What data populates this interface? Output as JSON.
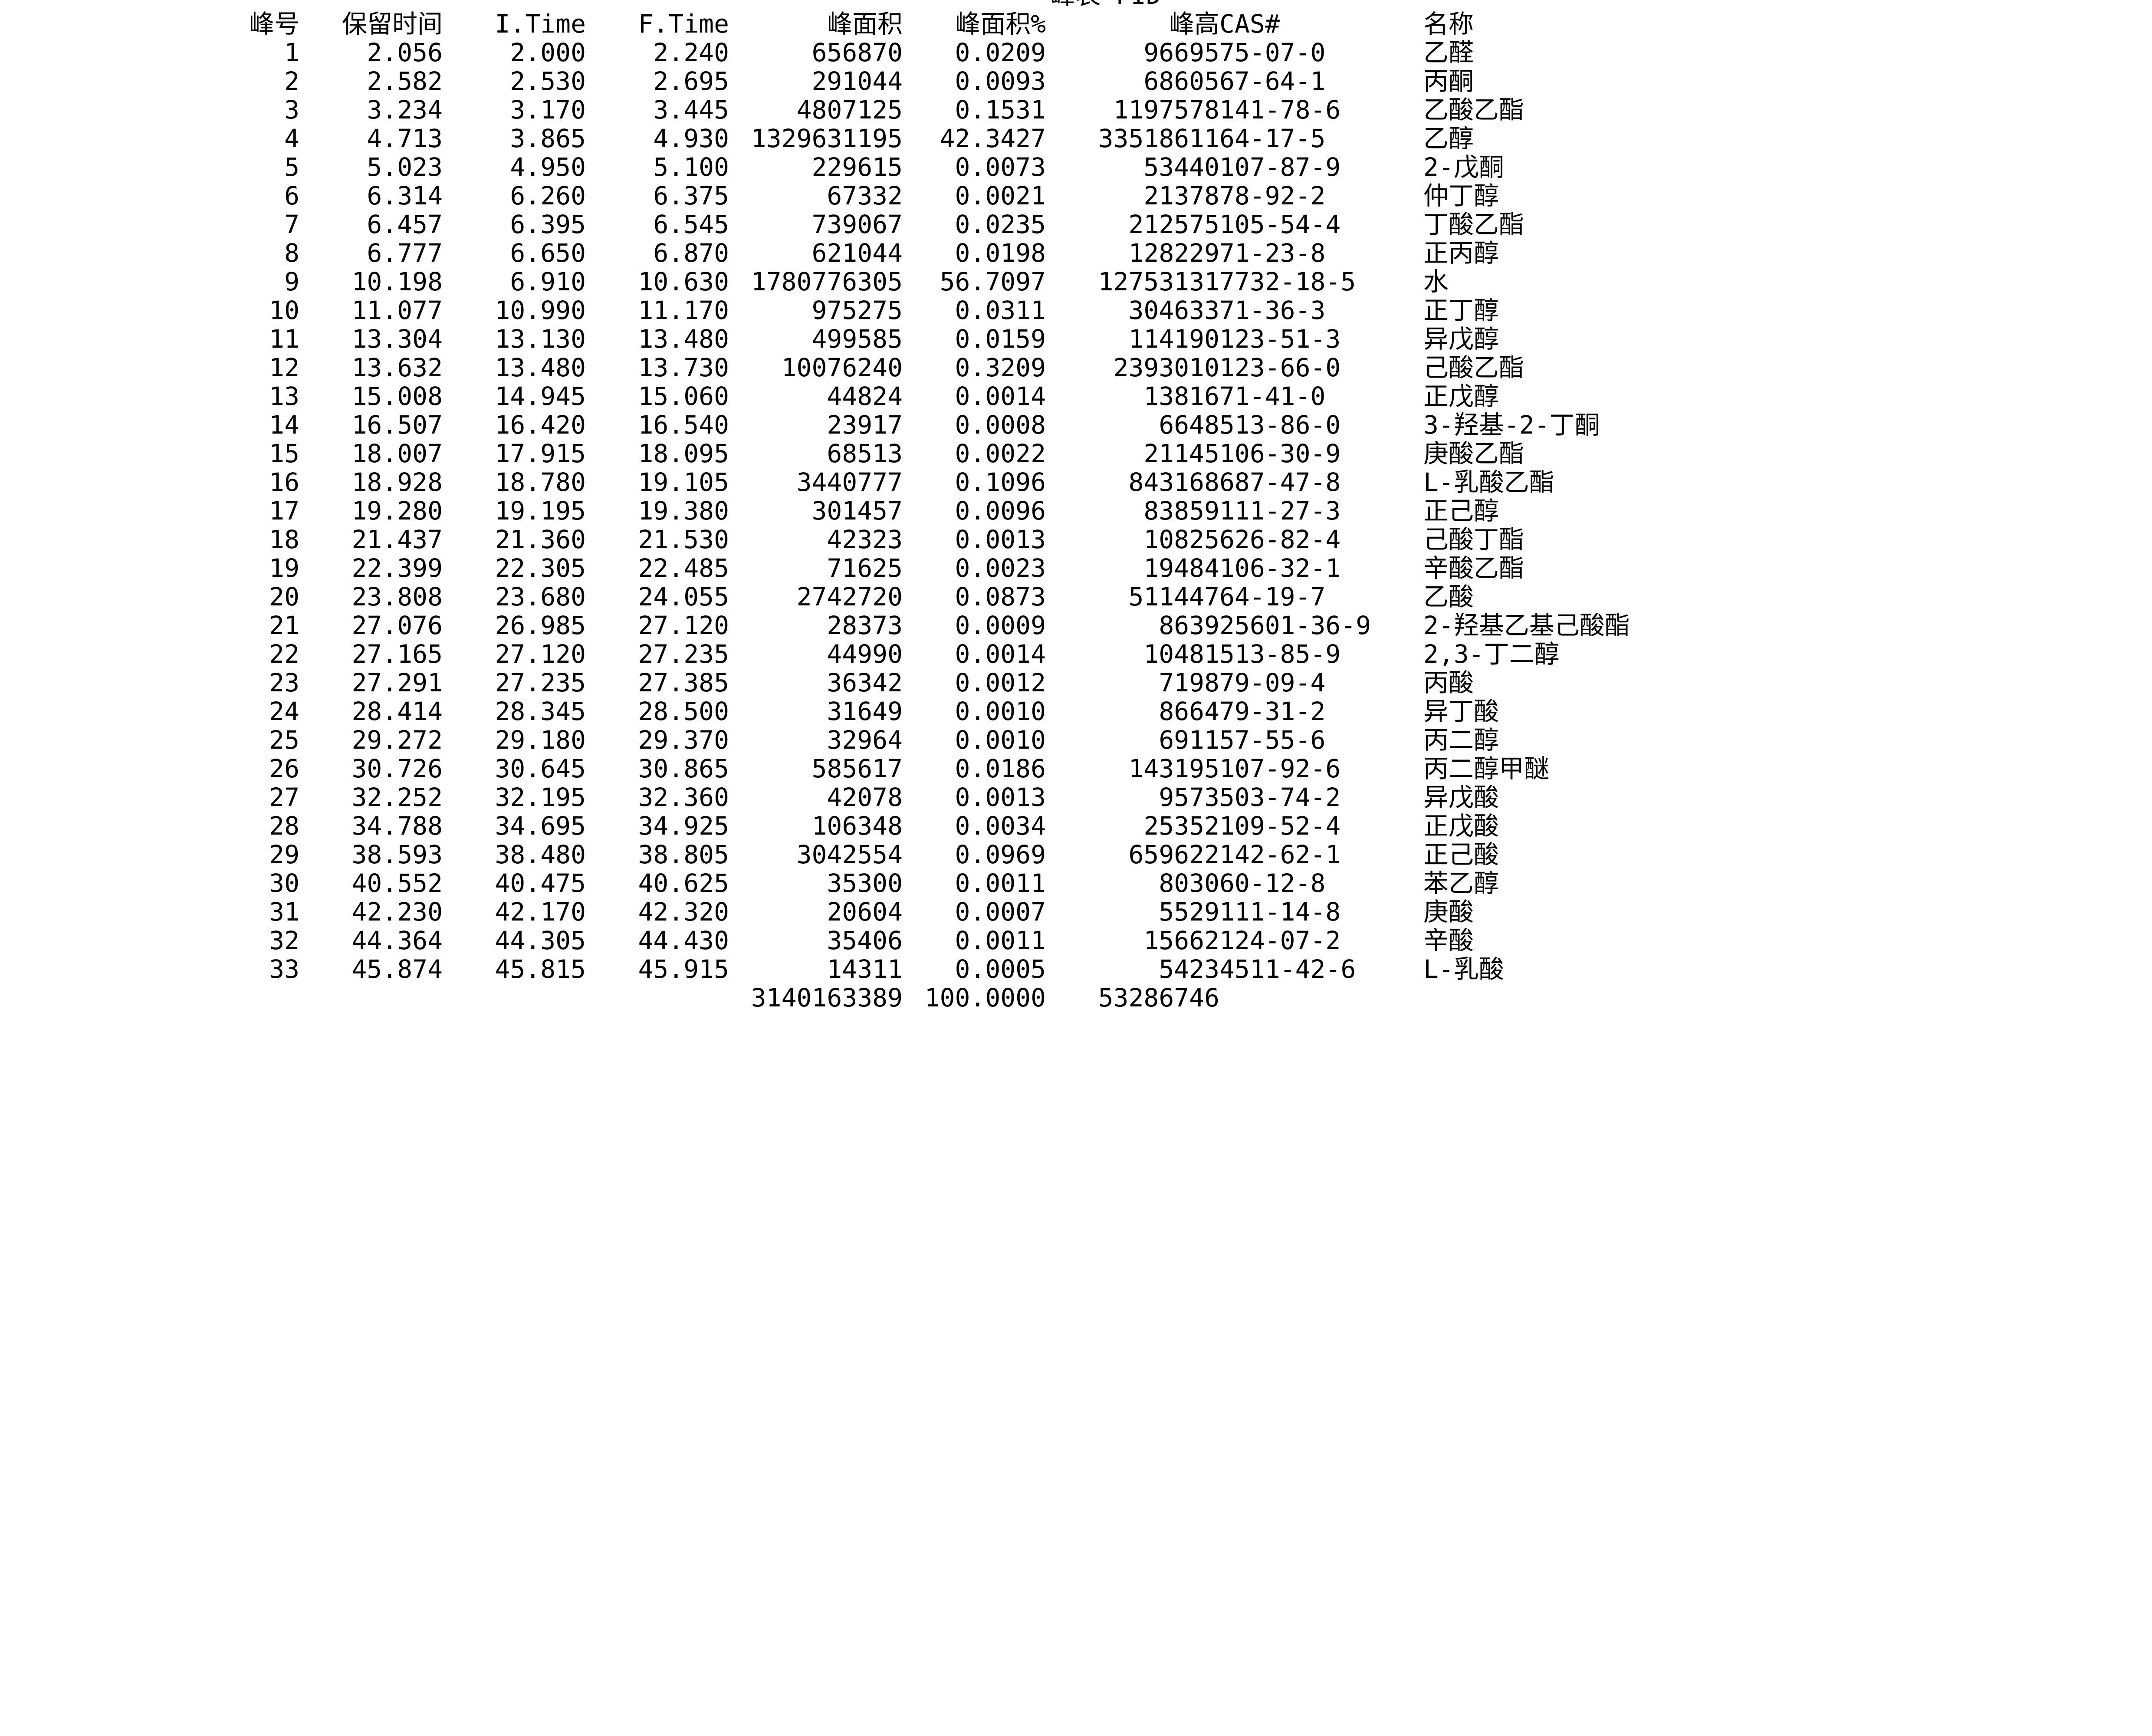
{
  "title": "峰表 FID",
  "headers": {
    "peak": "峰号",
    "rt": "保留时间",
    "itime": "I.Time",
    "ftime": "F.Time",
    "area": "峰面积",
    "area_pct": "峰面积%",
    "height": "峰高",
    "cas": "CAS#",
    "name": "名称"
  },
  "rows": [
    {
      "peak": "1",
      "rt": "2.056",
      "itime": "2.000",
      "ftime": "2.240",
      "area": "656870",
      "area_pct": "0.0209",
      "height": "96695",
      "cas": "75-07-0",
      "name": "乙醛"
    },
    {
      "peak": "2",
      "rt": "2.582",
      "itime": "2.530",
      "ftime": "2.695",
      "area": "291044",
      "area_pct": "0.0093",
      "height": "68605",
      "cas": "67-64-1",
      "name": "丙酮"
    },
    {
      "peak": "3",
      "rt": "3.234",
      "itime": "3.170",
      "ftime": "3.445",
      "area": "4807125",
      "area_pct": "0.1531",
      "height": "1197578",
      "cas": "141-78-6",
      "name": "乙酸乙酯"
    },
    {
      "peak": "4",
      "rt": "4.713",
      "itime": "3.865",
      "ftime": "4.930",
      "area": "1329631195",
      "area_pct": "42.3427",
      "height": "33518611",
      "cas": "64-17-5",
      "name": "乙醇"
    },
    {
      "peak": "5",
      "rt": "5.023",
      "itime": "4.950",
      "ftime": "5.100",
      "area": "229615",
      "area_pct": "0.0073",
      "height": "53440",
      "cas": "107-87-9",
      "name": "2-戊酮"
    },
    {
      "peak": "6",
      "rt": "6.314",
      "itime": "6.260",
      "ftime": "6.375",
      "area": "67332",
      "area_pct": "0.0021",
      "height": "21378",
      "cas": "78-92-2",
      "name": "仲丁醇"
    },
    {
      "peak": "7",
      "rt": "6.457",
      "itime": "6.395",
      "ftime": "6.545",
      "area": "739067",
      "area_pct": "0.0235",
      "height": "212575",
      "cas": "105-54-4",
      "name": "丁酸乙酯"
    },
    {
      "peak": "8",
      "rt": "6.777",
      "itime": "6.650",
      "ftime": "6.870",
      "area": "621044",
      "area_pct": "0.0198",
      "height": "128229",
      "cas": "71-23-8",
      "name": "正丙醇"
    },
    {
      "peak": "9",
      "rt": "10.198",
      "itime": "6.910",
      "ftime": "10.630",
      "area": "1780776305",
      "area_pct": "56.7097",
      "height": "12753131",
      "cas": "7732-18-5",
      "name": "水"
    },
    {
      "peak": "10",
      "rt": "11.077",
      "itime": "10.990",
      "ftime": "11.170",
      "area": "975275",
      "area_pct": "0.0311",
      "height": "304633",
      "cas": "71-36-3",
      "name": "正丁醇"
    },
    {
      "peak": "11",
      "rt": "13.304",
      "itime": "13.130",
      "ftime": "13.480",
      "area": "499585",
      "area_pct": "0.0159",
      "height": "114190",
      "cas": "123-51-3",
      "name": "异戊醇"
    },
    {
      "peak": "12",
      "rt": "13.632",
      "itime": "13.480",
      "ftime": "13.730",
      "area": "10076240",
      "area_pct": "0.3209",
      "height": "2393010",
      "cas": "123-66-0",
      "name": "己酸乙酯"
    },
    {
      "peak": "13",
      "rt": "15.008",
      "itime": "14.945",
      "ftime": "15.060",
      "area": "44824",
      "area_pct": "0.0014",
      "height": "13816",
      "cas": "71-41-0",
      "name": "正戊醇"
    },
    {
      "peak": "14",
      "rt": "16.507",
      "itime": "16.420",
      "ftime": "16.540",
      "area": "23917",
      "area_pct": "0.0008",
      "height": "6648",
      "cas": "513-86-0",
      "name": "3-羟基-2-丁酮"
    },
    {
      "peak": "15",
      "rt": "18.007",
      "itime": "17.915",
      "ftime": "18.095",
      "area": "68513",
      "area_pct": "0.0022",
      "height": "21145",
      "cas": "106-30-9",
      "name": "庚酸乙酯"
    },
    {
      "peak": "16",
      "rt": "18.928",
      "itime": "18.780",
      "ftime": "19.105",
      "area": "3440777",
      "area_pct": "0.1096",
      "height": "843168",
      "cas": "687-47-8",
      "name": "L-乳酸乙酯"
    },
    {
      "peak": "17",
      "rt": "19.280",
      "itime": "19.195",
      "ftime": "19.380",
      "area": "301457",
      "area_pct": "0.0096",
      "height": "83859",
      "cas": "111-27-3",
      "name": "正己醇"
    },
    {
      "peak": "18",
      "rt": "21.437",
      "itime": "21.360",
      "ftime": "21.530",
      "area": "42323",
      "area_pct": "0.0013",
      "height": "10825",
      "cas": "626-82-4",
      "name": "己酸丁酯"
    },
    {
      "peak": "19",
      "rt": "22.399",
      "itime": "22.305",
      "ftime": "22.485",
      "area": "71625",
      "area_pct": "0.0023",
      "height": "19484",
      "cas": "106-32-1",
      "name": "辛酸乙酯"
    },
    {
      "peak": "20",
      "rt": "23.808",
      "itime": "23.680",
      "ftime": "24.055",
      "area": "2742720",
      "area_pct": "0.0873",
      "height": "511447",
      "cas": "64-19-7",
      "name": "乙酸"
    },
    {
      "peak": "21",
      "rt": "27.076",
      "itime": "26.985",
      "ftime": "27.120",
      "area": "28373",
      "area_pct": "0.0009",
      "height": "8639",
      "cas": "25601-36-9",
      "name": "2-羟基乙基己酸酯"
    },
    {
      "peak": "22",
      "rt": "27.165",
      "itime": "27.120",
      "ftime": "27.235",
      "area": "44990",
      "area_pct": "0.0014",
      "height": "10481",
      "cas": "513-85-9",
      "name": "2,3-丁二醇"
    },
    {
      "peak": "23",
      "rt": "27.291",
      "itime": "27.235",
      "ftime": "27.385",
      "area": "36342",
      "area_pct": "0.0012",
      "height": "7198",
      "cas": "79-09-4",
      "name": "丙酸"
    },
    {
      "peak": "24",
      "rt": "28.414",
      "itime": "28.345",
      "ftime": "28.500",
      "area": "31649",
      "area_pct": "0.0010",
      "height": "8664",
      "cas": "79-31-2",
      "name": "异丁酸"
    },
    {
      "peak": "25",
      "rt": "29.272",
      "itime": "29.180",
      "ftime": "29.370",
      "area": "32964",
      "area_pct": "0.0010",
      "height": "6911",
      "cas": "57-55-6",
      "name": "丙二醇"
    },
    {
      "peak": "26",
      "rt": "30.726",
      "itime": "30.645",
      "ftime": "30.865",
      "area": "585617",
      "area_pct": "0.0186",
      "height": "143195",
      "cas": "107-92-6",
      "name": "丙二醇甲醚"
    },
    {
      "peak": "27",
      "rt": "32.252",
      "itime": "32.195",
      "ftime": "32.360",
      "area": "42078",
      "area_pct": "0.0013",
      "height": "9573",
      "cas": "503-74-2",
      "name": "异戊酸"
    },
    {
      "peak": "28",
      "rt": "34.788",
      "itime": "34.695",
      "ftime": "34.925",
      "area": "106348",
      "area_pct": "0.0034",
      "height": "25352",
      "cas": "109-52-4",
      "name": "正戊酸"
    },
    {
      "peak": "29",
      "rt": "38.593",
      "itime": "38.480",
      "ftime": "38.805",
      "area": "3042554",
      "area_pct": "0.0969",
      "height": "659622",
      "cas": "142-62-1",
      "name": "正己酸"
    },
    {
      "peak": "30",
      "rt": "40.552",
      "itime": "40.475",
      "ftime": "40.625",
      "area": "35300",
      "area_pct": "0.0011",
      "height": "8030",
      "cas": "60-12-8",
      "name": "苯乙醇"
    },
    {
      "peak": "31",
      "rt": "42.230",
      "itime": "42.170",
      "ftime": "42.320",
      "area": "20604",
      "area_pct": "0.0007",
      "height": "5529",
      "cas": "111-14-8",
      "name": "庚酸"
    },
    {
      "peak": "32",
      "rt": "44.364",
      "itime": "44.305",
      "ftime": "44.430",
      "area": "35406",
      "area_pct": "0.0011",
      "height": "15662",
      "cas": "124-07-2",
      "name": "辛酸"
    },
    {
      "peak": "33",
      "rt": "45.874",
      "itime": "45.815",
      "ftime": "45.915",
      "area": "14311",
      "area_pct": "0.0005",
      "height": "5423",
      "cas": "4511-42-6",
      "name": "L-乳酸"
    }
  ],
  "totals": {
    "area": "3140163389",
    "area_pct": "100.0000",
    "height": "53286746"
  }
}
